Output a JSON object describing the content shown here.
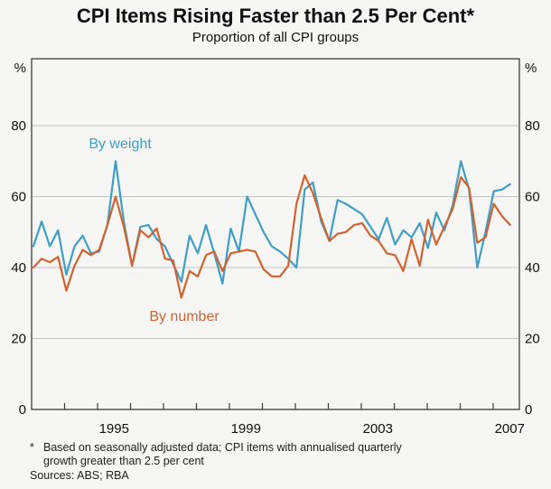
{
  "title": "CPI Items Rising Faster than 2.5 Per Cent*",
  "subtitle": "Proportion of all CPI groups",
  "axis": {
    "unit_left": "%",
    "unit_right": "%",
    "ytick_labels": [
      "0",
      "20",
      "40",
      "60",
      "80"
    ],
    "xtick_labels": [
      "1995",
      "1999",
      "2003",
      "2007"
    ]
  },
  "footnote": {
    "marker": "*",
    "line1": "Based on seasonally adjusted data; CPI items with annualised quarterly",
    "line2": "growth greater than 2.5 per cent",
    "sources": "Sources: ABS; RBA"
  },
  "colors": {
    "by_weight": "#3f9ec5",
    "by_number": "#d2622e",
    "gridline": "#c3c3c3",
    "frame": "#3a3a3a",
    "background": "#f6f6f5"
  },
  "chart_data": {
    "type": "line",
    "title": "CPI Items Rising Faster than 2.5 Per Cent",
    "subtitle": "Proportion of all CPI groups",
    "ylabel": "%",
    "ylim": [
      0,
      99
    ],
    "ytick_interval": 20,
    "yticks": [
      0,
      20,
      40,
      60,
      80
    ],
    "grid": "horizontal",
    "x_frequency": "quarterly",
    "x_start": "1993 Q1",
    "x_end": "2007 Q3",
    "xticks_years": [
      1994,
      1995,
      1996,
      1997,
      1998,
      1999,
      2000,
      2001,
      2002,
      2003,
      2004,
      2005,
      2006,
      2007
    ],
    "xtick_label_years": [
      1995,
      1999,
      2003,
      2007
    ],
    "legend_position": "inline-labels",
    "series": [
      {
        "name": "By weight",
        "color": "#3f9ec5",
        "values": [
          46,
          53,
          46,
          50.5,
          38,
          46,
          49,
          44,
          44.5,
          52,
          70,
          53,
          40.5,
          51.5,
          52,
          48,
          46,
          41,
          36,
          49,
          44,
          52,
          44,
          35.5,
          51,
          44.5,
          60,
          55,
          50,
          46,
          44.5,
          42.5,
          40,
          62,
          64,
          53,
          47.5,
          59,
          58,
          56.5,
          55,
          51.5,
          48,
          54,
          46.5,
          50.5,
          48.5,
          52.5,
          45.5,
          55.5,
          50.5,
          57.5,
          70,
          62,
          40,
          50,
          61.5,
          62,
          63.5
        ]
      },
      {
        "name": "By number",
        "color": "#d2622e",
        "values": [
          40,
          42.5,
          41.5,
          43,
          33.5,
          40.5,
          45,
          43.5,
          45,
          52,
          60,
          51.5,
          40.5,
          50.5,
          48.5,
          51,
          42.5,
          42,
          31.5,
          39,
          37.5,
          43.5,
          44.5,
          39,
          44,
          44.5,
          45,
          44.5,
          39.5,
          37.5,
          37.5,
          40.5,
          58,
          66,
          61,
          54,
          47.5,
          49.5,
          50,
          52,
          52.5,
          49,
          47.5,
          44,
          43.5,
          39,
          48,
          40.5,
          53.5,
          46.5,
          51.5,
          56.5,
          65.5,
          62.5,
          47,
          48.5,
          58,
          54.5,
          52
        ]
      }
    ]
  }
}
